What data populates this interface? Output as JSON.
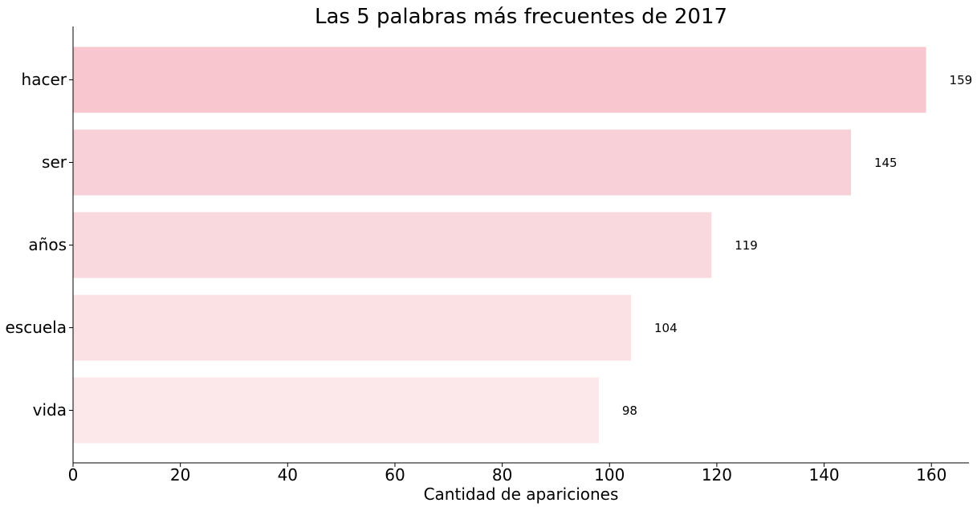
{
  "chart_data": {
    "type": "bar",
    "orientation": "horizontal",
    "title": "Las 5 palabras más frecuentes de 2017",
    "xlabel": "Cantidad de apariciones",
    "ylabel": "",
    "categories": [
      "hacer",
      "ser",
      "años",
      "escuela",
      "vida"
    ],
    "values": [
      159,
      145,
      119,
      104,
      98
    ],
    "bar_colors": [
      "#f7c6cf",
      "#f8d0d8",
      "#f9d9de",
      "#fbe0e4",
      "#fce8ea"
    ],
    "xlim": [
      0,
      167
    ],
    "xticks": [
      0,
      20,
      40,
      60,
      80,
      100,
      120,
      140,
      160
    ],
    "grid": false,
    "legend": "none",
    "data_labels": true
  }
}
